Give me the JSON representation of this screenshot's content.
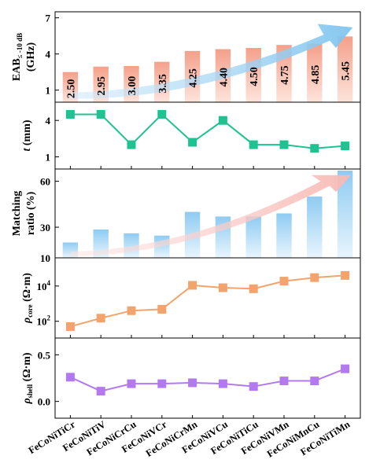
{
  "categories": [
    "FeCoNiTiCr",
    "FeCoNiTiV",
    "FeCoNiCrCu",
    "FeCoNiVCr",
    "FeCoNiCrMn",
    "FeCoNiVCu",
    "FeCoNiTiCu",
    "FeCoNiVMn",
    "FeCoNiMnCu",
    "FeCoNiTiMn"
  ],
  "chart_data": [
    {
      "type": "bar",
      "ylabel_lines": [
        "EAB",
        "(GHz)"
      ],
      "ylabel_sub": "≤ -10 dB",
      "ylim": [
        0,
        7.5
      ],
      "yticks": [
        1,
        4,
        7
      ],
      "ytick_labels": [
        "1",
        "4",
        "7"
      ],
      "values": [
        2.5,
        2.95,
        3.0,
        3.35,
        4.25,
        4.4,
        4.5,
        4.75,
        4.85,
        5.45
      ],
      "data_labels": [
        "2.50",
        "2.95",
        "3.00",
        "3.35",
        "4.25",
        "4.40",
        "4.50",
        "4.75",
        "4.85",
        "5.45"
      ],
      "color_top": "#f4a08a",
      "color_bottom": "#fde4dc",
      "arrow_color": "#7fc4ef"
    },
    {
      "type": "line",
      "ylabel_var": "t",
      "ylabel_unit": " (mm)",
      "ylim": [
        0,
        5.5
      ],
      "yticks": [
        1,
        4
      ],
      "ytick_labels": [
        "1",
        "4"
      ],
      "values": [
        4.5,
        4.5,
        2.0,
        4.5,
        2.2,
        4.0,
        2.0,
        2.0,
        1.7,
        1.9
      ],
      "color": "#1fc291",
      "marker": "square"
    },
    {
      "type": "bar",
      "ylabel_lines": [
        "Matching",
        "ratio (%)"
      ],
      "ylim": [
        10,
        68
      ],
      "yticks": [
        10,
        30,
        60
      ],
      "ytick_labels": [
        "10",
        "30",
        "60"
      ],
      "values": [
        20,
        28.5,
        26,
        24.5,
        40,
        37,
        37,
        39,
        50,
        67
      ],
      "color_top": "#8fcbf2",
      "color_bottom": "#e8f5fd",
      "arrow_color": "#f7b9b4"
    },
    {
      "type": "line",
      "log_scale": true,
      "ylabel_var": "ρ",
      "ylabel_sub": "core",
      "ylabel_unit": " (Ω·m)",
      "ylim_exp": [
        1.05,
        5.6
      ],
      "ytick_exps": [
        2,
        4
      ],
      "ytick_base": "10",
      "ytick_sups": [
        "2",
        "4"
      ],
      "values": [
        50,
        150,
        400,
        480,
        11000,
        8000,
        7000,
        19000,
        30000,
        40000
      ],
      "color": "#f2a46c",
      "marker": "square"
    },
    {
      "type": "line",
      "ylabel_var": "ρ",
      "ylabel_sub": "shell",
      "ylabel_unit": " (Ω·m)",
      "ylim": [
        -0.18,
        0.68
      ],
      "yticks": [
        0.0,
        0.5
      ],
      "ytick_labels": [
        "0.0",
        "0.5"
      ],
      "values": [
        0.26,
        0.11,
        0.19,
        0.19,
        0.2,
        0.19,
        0.16,
        0.22,
        0.22,
        0.35
      ],
      "color": "#b37af0",
      "marker": "square"
    }
  ]
}
